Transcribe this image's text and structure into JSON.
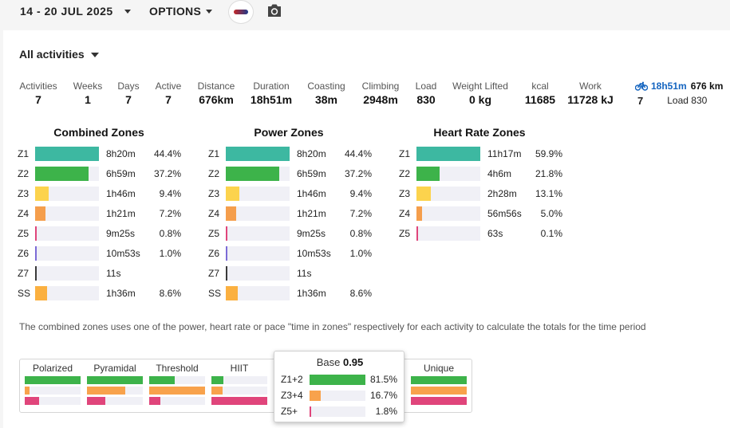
{
  "header": {
    "date_range": "14 - 20 JUL 2025",
    "options_label": "OPTIONS"
  },
  "filter": {
    "label": "All activities"
  },
  "stats": [
    {
      "label": "Activities",
      "value": "7"
    },
    {
      "label": "Weeks",
      "value": "1"
    },
    {
      "label": "Days",
      "value": "7"
    },
    {
      "label": "Active",
      "value": "7"
    },
    {
      "label": "Distance",
      "value": "676km"
    },
    {
      "label": "Duration",
      "value": "18h51m"
    },
    {
      "label": "Coasting",
      "value": "38m"
    },
    {
      "label": "Climbing",
      "value": "2948m"
    },
    {
      "label": "Load",
      "value": "830"
    },
    {
      "label": "Weight Lifted",
      "value": "0 kg"
    },
    {
      "label": "kcal",
      "value": "11685"
    },
    {
      "label": "Work",
      "value": "11728 kJ"
    }
  ],
  "bike_summary": {
    "duration": "18h51m",
    "distance": "676 km",
    "count": "7",
    "load": "Load 830"
  },
  "zones": {
    "combined": {
      "title": "Combined Zones",
      "rows": [
        {
          "zone": "Z1",
          "time": "8h20m",
          "pct": "44.4%",
          "fraction": 1.0,
          "color": "#3db8a1"
        },
        {
          "zone": "Z2",
          "time": "6h59m",
          "pct": "37.2%",
          "fraction": 0.84,
          "color": "#3db34a"
        },
        {
          "zone": "Z3",
          "time": "1h46m",
          "pct": "9.4%",
          "fraction": 0.21,
          "color": "#fcd34d"
        },
        {
          "zone": "Z4",
          "time": "1h21m",
          "pct": "7.2%",
          "fraction": 0.16,
          "color": "#f59e4c"
        },
        {
          "zone": "Z5",
          "time": "9m25s",
          "pct": "0.8%",
          "fraction": 0.02,
          "color": "#e0457b"
        },
        {
          "zone": "Z6",
          "time": "10m53s",
          "pct": "1.0%",
          "fraction": 0.02,
          "color": "#7c6bd6"
        },
        {
          "zone": "Z7",
          "time": "11s",
          "pct": "",
          "fraction": 0.01,
          "color": "#3a3a3a"
        },
        {
          "zone": "SS",
          "time": "1h36m",
          "pct": "8.6%",
          "fraction": 0.19,
          "color": "#fbb040"
        }
      ]
    },
    "power": {
      "title": "Power Zones",
      "rows": [
        {
          "zone": "Z1",
          "time": "8h20m",
          "pct": "44.4%",
          "fraction": 1.0,
          "color": "#3db8a1"
        },
        {
          "zone": "Z2",
          "time": "6h59m",
          "pct": "37.2%",
          "fraction": 0.84,
          "color": "#3db34a"
        },
        {
          "zone": "Z3",
          "time": "1h46m",
          "pct": "9.4%",
          "fraction": 0.21,
          "color": "#fcd34d"
        },
        {
          "zone": "Z4",
          "time": "1h21m",
          "pct": "7.2%",
          "fraction": 0.16,
          "color": "#f59e4c"
        },
        {
          "zone": "Z5",
          "time": "9m25s",
          "pct": "0.8%",
          "fraction": 0.02,
          "color": "#e0457b"
        },
        {
          "zone": "Z6",
          "time": "10m53s",
          "pct": "1.0%",
          "fraction": 0.02,
          "color": "#7c6bd6"
        },
        {
          "zone": "Z7",
          "time": "11s",
          "pct": "",
          "fraction": 0.01,
          "color": "#3a3a3a"
        },
        {
          "zone": "SS",
          "time": "1h36m",
          "pct": "8.6%",
          "fraction": 0.19,
          "color": "#fbb040"
        }
      ]
    },
    "heart_rate": {
      "title": "Heart Rate Zones",
      "rows": [
        {
          "zone": "Z1",
          "time": "11h17m",
          "pct": "59.9%",
          "fraction": 1.0,
          "color": "#3db8a1"
        },
        {
          "zone": "Z2",
          "time": "4h6m",
          "pct": "21.8%",
          "fraction": 0.36,
          "color": "#3db34a"
        },
        {
          "zone": "Z3",
          "time": "2h28m",
          "pct": "13.1%",
          "fraction": 0.22,
          "color": "#fcd34d"
        },
        {
          "zone": "Z4",
          "time": "56m56s",
          "pct": "5.0%",
          "fraction": 0.09,
          "color": "#f59e4c"
        },
        {
          "zone": "Z5",
          "time": "63s",
          "pct": "0.1%",
          "fraction": 0.01,
          "color": "#e0457b"
        }
      ]
    }
  },
  "footnote": "The combined zones uses one of the power, heart rate or pace \"time in zones\" respectively for each activity to calculate the totals for the time period",
  "distribution": [
    {
      "label": "Polarized",
      "bars": [
        1.0,
        0.08,
        0.25
      ]
    },
    {
      "label": "Pyramidal",
      "bars": [
        1.0,
        0.68,
        0.33
      ]
    },
    {
      "label": "Threshold",
      "bars": [
        0.45,
        1.0,
        0.2
      ]
    },
    {
      "label": "HIIT",
      "bars": [
        0.22,
        0.2,
        1.0
      ]
    },
    {
      "label": "Unique",
      "bars": [
        1.0,
        1.0,
        1.0
      ]
    }
  ],
  "distribution_colors": [
    "#3db34a",
    "#f8a24c",
    "#e0457b"
  ],
  "tooltip": {
    "title_prefix": "Base",
    "title_value": "0.95",
    "rows": [
      {
        "zone": "Z1+2",
        "pct": "81.5%",
        "fraction": 1.0,
        "color": "#3db34a"
      },
      {
        "zone": "Z3+4",
        "pct": "16.7%",
        "fraction": 0.2,
        "color": "#f8a24c"
      },
      {
        "zone": "Z5+",
        "pct": "1.8%",
        "fraction": 0.02,
        "color": "#e0457b"
      }
    ]
  }
}
